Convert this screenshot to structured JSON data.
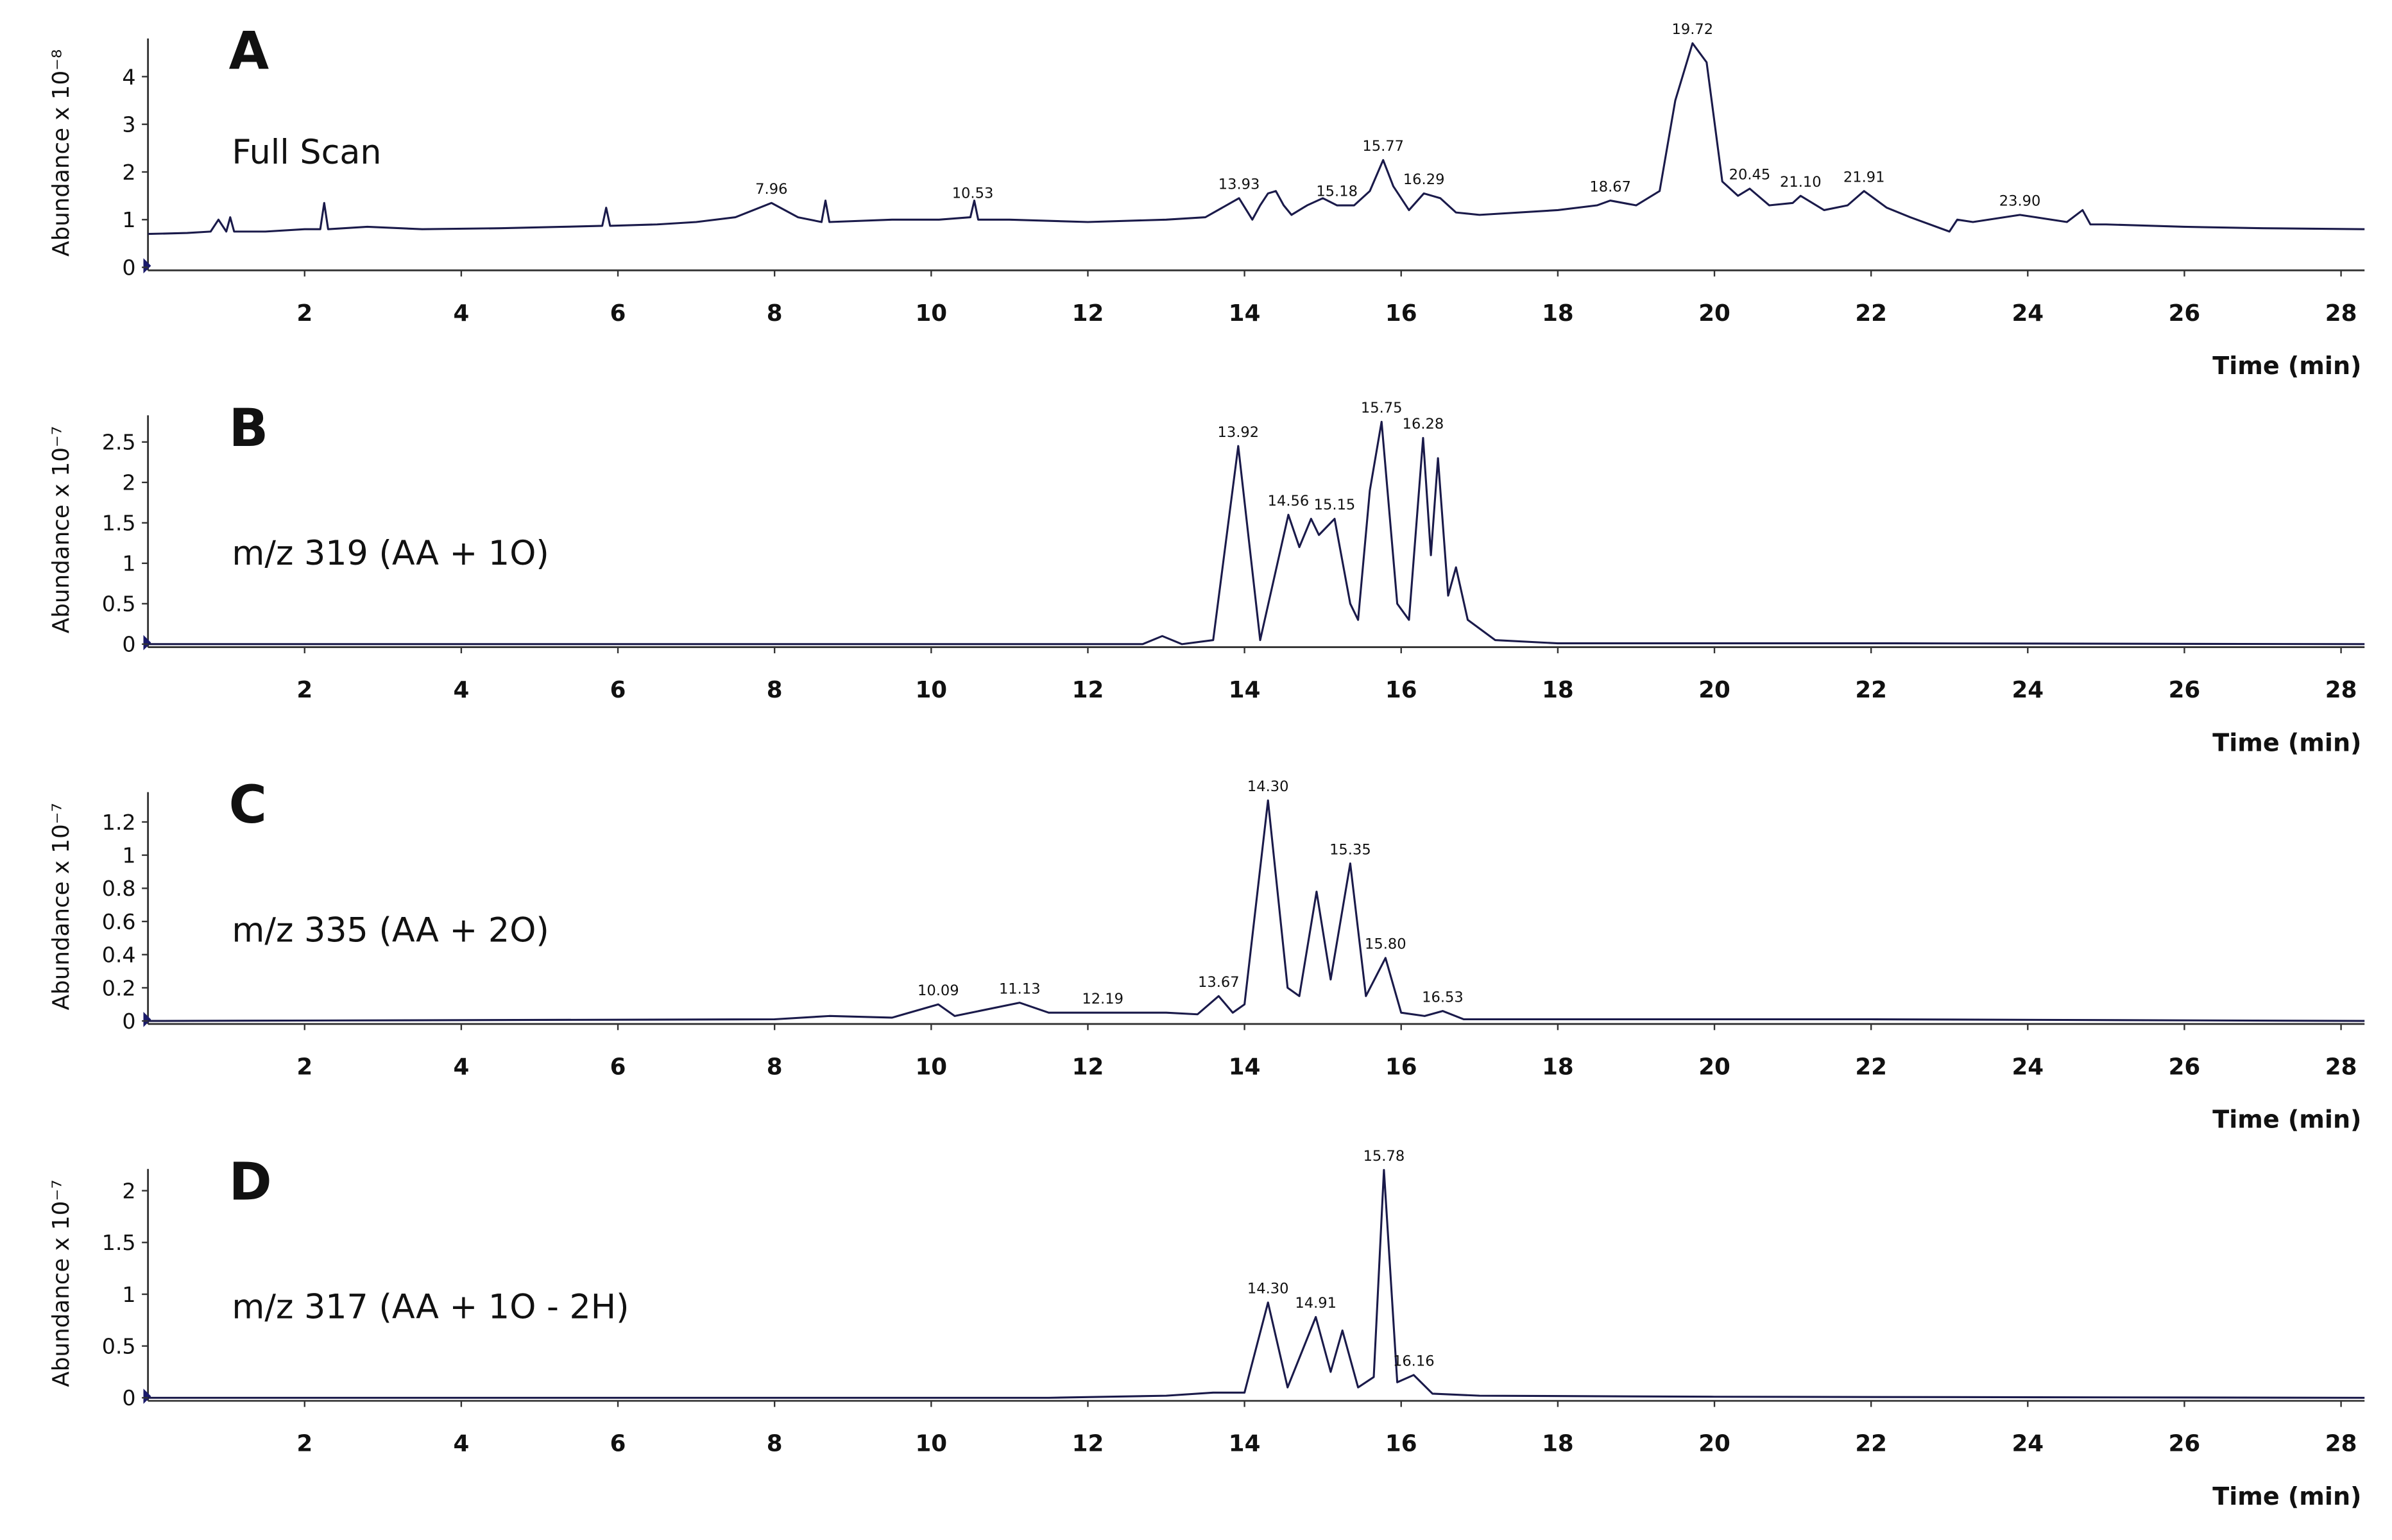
{
  "chart_data": [
    {
      "type": "line",
      "label": "A",
      "subtitle": "Full Scan",
      "ylabel": "Abundance x 10⁻⁸",
      "xlabel": "Time (min)",
      "color": "#1a1a4a",
      "xlim": [
        0,
        28.3
      ],
      "xticks": [
        2,
        4,
        6,
        8,
        10,
        12,
        14,
        16,
        18,
        20,
        22,
        24,
        26,
        28
      ],
      "ylim": [
        0,
        4.8
      ],
      "yticks": [
        0,
        1,
        2,
        3,
        4
      ],
      "x": [
        0,
        0.5,
        0.8,
        0.9,
        1.0,
        1.05,
        1.1,
        1.5,
        2.0,
        2.2,
        2.25,
        2.3,
        2.8,
        3.5,
        4.5,
        5.3,
        5.8,
        5.85,
        5.9,
        6.5,
        7.0,
        7.5,
        7.96,
        8.3,
        8.6,
        8.65,
        8.7,
        9.5,
        10.1,
        10.5,
        10.55,
        10.6,
        11.0,
        12.0,
        13.0,
        13.5,
        13.93,
        14.1,
        14.2,
        14.3,
        14.4,
        14.5,
        14.6,
        14.8,
        15.0,
        15.18,
        15.4,
        15.6,
        15.77,
        15.9,
        16.1,
        16.29,
        16.5,
        16.7,
        17.0,
        18.0,
        18.5,
        18.67,
        19.0,
        19.3,
        19.5,
        19.72,
        19.9,
        20.1,
        20.3,
        20.45,
        20.7,
        21.0,
        21.1,
        21.4,
        21.7,
        21.91,
        22.2,
        22.5,
        23.0,
        23.1,
        23.3,
        23.9,
        24.5,
        24.7,
        24.8,
        25.0,
        26.0,
        27.0,
        28.3
      ],
      "values": [
        0.7,
        0.72,
        0.75,
        1.0,
        0.75,
        1.05,
        0.75,
        0.75,
        0.8,
        0.8,
        1.35,
        0.8,
        0.85,
        0.8,
        0.82,
        0.85,
        0.87,
        1.25,
        0.87,
        0.9,
        0.95,
        1.05,
        1.35,
        1.05,
        0.95,
        1.4,
        0.95,
        1.0,
        1.0,
        1.05,
        1.4,
        1.0,
        1.0,
        0.95,
        1.0,
        1.05,
        1.45,
        1.0,
        1.3,
        1.55,
        1.6,
        1.3,
        1.1,
        1.3,
        1.45,
        1.3,
        1.3,
        1.6,
        2.25,
        1.7,
        1.2,
        1.55,
        1.45,
        1.15,
        1.1,
        1.2,
        1.3,
        1.4,
        1.3,
        1.6,
        3.5,
        4.7,
        4.3,
        1.8,
        1.5,
        1.65,
        1.3,
        1.35,
        1.5,
        1.2,
        1.3,
        1.6,
        1.25,
        1.05,
        0.75,
        1.0,
        0.95,
        1.1,
        0.95,
        1.2,
        0.9,
        0.9,
        0.85,
        0.82,
        0.8
      ],
      "peak_labels": [
        7.96,
        10.53,
        13.93,
        15.18,
        15.77,
        16.29,
        18.67,
        19.72,
        20.45,
        {
          "value": 21.1,
          "label": "21.10"
        },
        21.91,
        {
          "value": 23.9,
          "label": "23.90"
        }
      ]
    },
    {
      "type": "line",
      "label": "B",
      "subtitle": "m/z 319 (AA + 1O)",
      "ylabel": "Abundance x 10⁻⁷",
      "xlabel": "Time (min)",
      "color": "#1a1a4a",
      "xlim": [
        0,
        28.3
      ],
      "xticks": [
        2,
        4,
        6,
        8,
        10,
        12,
        14,
        16,
        18,
        20,
        22,
        24,
        26,
        28
      ],
      "ylim": [
        0,
        2.83
      ],
      "yticks": [
        0,
        0.5,
        1,
        1.5,
        2,
        2.5
      ],
      "x": [
        0,
        12.7,
        12.95,
        13.2,
        13.6,
        13.92,
        14.2,
        14.56,
        14.7,
        14.85,
        14.95,
        15.15,
        15.35,
        15.45,
        15.6,
        15.75,
        15.95,
        16.1,
        16.28,
        16.38,
        16.47,
        16.6,
        16.7,
        16.85,
        17.2,
        18,
        22.3,
        28.3
      ],
      "values": [
        0,
        0,
        0.1,
        0,
        0.05,
        2.45,
        0.05,
        1.6,
        1.2,
        1.55,
        1.35,
        1.55,
        0.5,
        0.3,
        1.9,
        2.75,
        0.5,
        0.3,
        2.55,
        1.1,
        2.3,
        0.6,
        0.95,
        0.3,
        0.05,
        0.01,
        0.01,
        0
      ],
      "peak_labels": [
        13.92,
        14.56,
        15.15,
        15.75,
        16.28
      ]
    },
    {
      "type": "line",
      "label": "C",
      "subtitle": "m/z 335 (AA + 2O)",
      "ylabel": "Abundance x 10⁻⁷",
      "xlabel": "Time (min)",
      "color": "#1a1a4a",
      "xlim": [
        0,
        28.3
      ],
      "xticks": [
        2,
        4,
        6,
        8,
        10,
        12,
        14,
        16,
        18,
        20,
        22,
        24,
        26,
        28
      ],
      "ylim": [
        0,
        1.38
      ],
      "yticks": [
        0,
        0.2,
        0.4,
        0.6,
        0.8,
        1,
        1.2
      ],
      "x": [
        0,
        8,
        8.7,
        9.5,
        10.09,
        10.3,
        11.13,
        11.5,
        12.19,
        13.0,
        13.4,
        13.67,
        13.85,
        14.0,
        14.3,
        14.55,
        14.7,
        14.92,
        15.1,
        15.35,
        15.55,
        15.8,
        16.0,
        16.3,
        16.53,
        16.8,
        18,
        22,
        28.3
      ],
      "values": [
        0,
        0.01,
        0.03,
        0.02,
        0.1,
        0.03,
        0.11,
        0.05,
        0.05,
        0.05,
        0.04,
        0.15,
        0.05,
        0.1,
        1.33,
        0.2,
        0.15,
        0.78,
        0.25,
        0.95,
        0.15,
        0.38,
        0.05,
        0.03,
        0.06,
        0.01,
        0.01,
        0.01,
        0
      ],
      "peak_labels": [
        10.09,
        11.13,
        12.19,
        13.67,
        {
          "value": 14.3,
          "label": "14.30"
        },
        15.35,
        {
          "value": 15.8,
          "label": "15.80"
        },
        16.53
      ]
    },
    {
      "type": "line",
      "label": "D",
      "subtitle": "m/z 317 (AA + 1O - 2H)",
      "ylabel": "Abundance x 10⁻⁷",
      "xlabel": "Time (min)",
      "color": "#1a1a4a",
      "xlim": [
        0,
        28.3
      ],
      "xticks": [
        2,
        4,
        6,
        8,
        10,
        12,
        14,
        16,
        18,
        20,
        22,
        24,
        26,
        28
      ],
      "ylim": [
        0,
        2.21
      ],
      "yticks": [
        0,
        0.5,
        1,
        1.5,
        2
      ],
      "x": [
        0,
        11.5,
        13,
        13.6,
        14.0,
        14.3,
        14.55,
        14.91,
        15.1,
        15.25,
        15.45,
        15.65,
        15.78,
        15.95,
        16.16,
        16.4,
        17,
        20,
        28.3
      ],
      "values": [
        0,
        0,
        0.02,
        0.05,
        0.05,
        0.92,
        0.1,
        0.78,
        0.25,
        0.65,
        0.1,
        0.2,
        2.2,
        0.15,
        0.22,
        0.04,
        0.02,
        0.01,
        0
      ],
      "peak_labels": [
        {
          "value": 14.3,
          "label": "14.30"
        },
        14.91,
        15.78,
        16.16
      ]
    }
  ]
}
